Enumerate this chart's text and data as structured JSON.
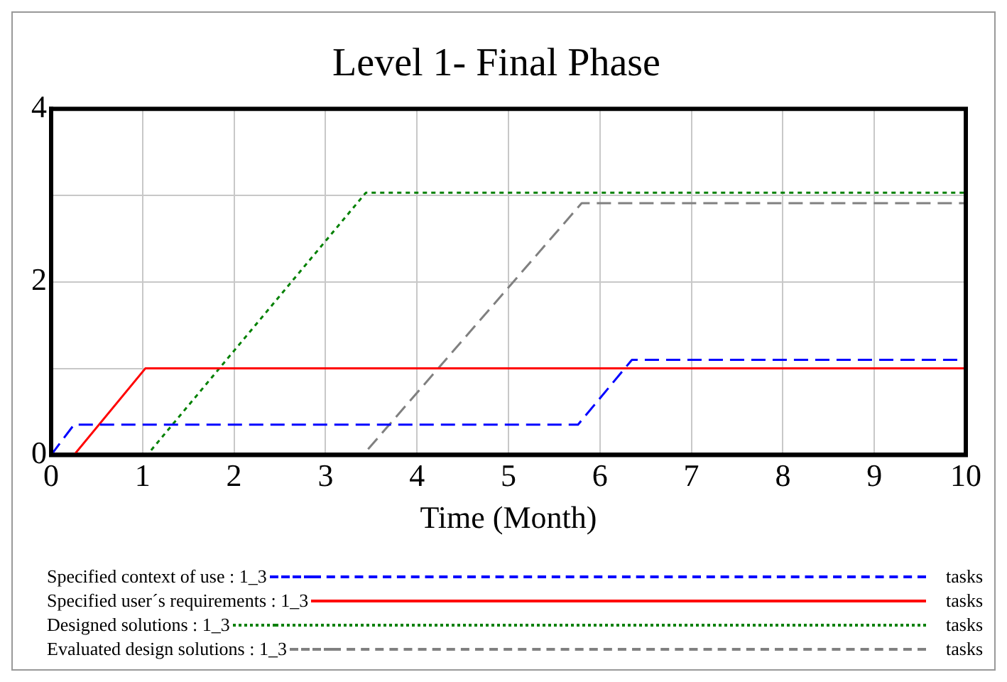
{
  "chart_data": {
    "type": "line",
    "title": "Level 1- Final Phase",
    "xlabel": "Time (Month)",
    "xlim": [
      0,
      10
    ],
    "xticks": [
      0,
      1,
      2,
      3,
      4,
      5,
      6,
      7,
      8,
      9,
      10
    ],
    "ylim": [
      0,
      4
    ],
    "yticks": [
      0,
      {
        "value": 1,
        "label": null
      },
      2,
      {
        "value": 3,
        "label": null
      },
      4
    ],
    "grid": true,
    "legend": "bottom",
    "marker": "none",
    "series": [
      {
        "name": "Specified context of use : 1_3",
        "color": "#0000ff",
        "line_style": "dashed",
        "x": [
          0,
          0.25,
          5.76,
          6.35,
          10
        ],
        "values": [
          0,
          0.35,
          0.35,
          1.1,
          1.1
        ]
      },
      {
        "name": "Specified user´s requirements : 1_3",
        "color": "#ff0000",
        "line_style": "solid",
        "x": [
          0,
          0.25,
          1.03,
          10
        ],
        "values": [
          0,
          0,
          1,
          1
        ]
      },
      {
        "name": "Designed solutions : 1_3",
        "color": "#008000",
        "line_style": "dotted",
        "x": [
          0,
          1.05,
          3.44,
          10
        ],
        "values": [
          0,
          0,
          3.03,
          3.03
        ]
      },
      {
        "name": "Evaluated design solutions : 1_3",
        "color": "#808080",
        "line_style": "dashed",
        "x": [
          0,
          3.41,
          5.8,
          10
        ],
        "values": [
          0,
          0,
          2.91,
          2.91
        ]
      }
    ],
    "annotations": [
      "tasks",
      "tasks",
      "tasks",
      "tasks"
    ]
  }
}
